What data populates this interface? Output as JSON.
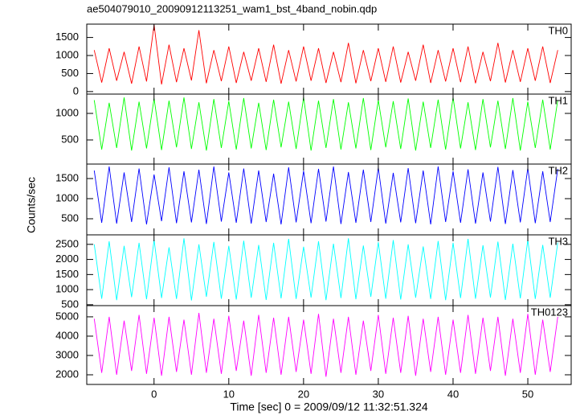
{
  "chart_data": [
    {
      "type": "line",
      "title": "ae504079010_20090912113251_wam1_bst_4band_nobin.qdp",
      "label": "TH0",
      "x": [
        -8,
        -7,
        -6,
        -5,
        -4,
        -3,
        -2,
        -1,
        0,
        1,
        2,
        3,
        4,
        5,
        6,
        7,
        8,
        9,
        10,
        11,
        12,
        13,
        14,
        15,
        16,
        17,
        18,
        19,
        20,
        21,
        22,
        23,
        24,
        25,
        26,
        27,
        28,
        29,
        30,
        31,
        32,
        33,
        34,
        35,
        36,
        37,
        38,
        39,
        40,
        41,
        42,
        43,
        44,
        45,
        46,
        47,
        48,
        49,
        50,
        51,
        52,
        53,
        54
      ],
      "series": [
        {
          "name": "TH0",
          "color": "#ff0000",
          "values": [
            1150,
            250,
            1200,
            300,
            1100,
            220,
            1250,
            280,
            1850,
            200,
            1300,
            260,
            1200,
            310,
            1700,
            230,
            1150,
            290,
            1250,
            240,
            1100,
            300,
            1200,
            270,
            1300,
            220,
            1150,
            280,
            1250,
            300,
            1200,
            240,
            1100,
            260,
            1350,
            230,
            1150,
            290,
            1200,
            270,
            1250,
            250,
            1100,
            300,
            1300,
            240,
            1150,
            280,
            1200,
            260,
            1250,
            230,
            1100,
            290,
            1350,
            250,
            1150,
            270,
            1200,
            300,
            1250,
            240,
            1150
          ]
        }
      ],
      "xlim": [
        -9,
        55.8
      ],
      "xticks": [
        0,
        10,
        20,
        30,
        40,
        50
      ],
      "ylim": [
        -70,
        1870
      ],
      "yticks": [
        0,
        500,
        1000,
        1500
      ]
    },
    {
      "type": "line",
      "label": "TH1",
      "x": [
        -8,
        -7,
        -6,
        -5,
        -4,
        -3,
        -2,
        -1,
        0,
        1,
        2,
        3,
        4,
        5,
        6,
        7,
        8,
        9,
        10,
        11,
        12,
        13,
        14,
        15,
        16,
        17,
        18,
        19,
        20,
        21,
        22,
        23,
        24,
        25,
        26,
        27,
        28,
        29,
        30,
        31,
        32,
        33,
        34,
        35,
        36,
        37,
        38,
        39,
        40,
        41,
        42,
        43,
        44,
        45,
        46,
        47,
        48,
        49,
        50,
        51,
        52,
        53,
        54
      ],
      "series": [
        {
          "name": "TH1",
          "color": "#00ff00",
          "values": [
            1250,
            320,
            1200,
            350,
            1300,
            300,
            1220,
            340,
            1280,
            310,
            1240,
            360,
            1300,
            330,
            1210,
            300,
            1270,
            350,
            1230,
            320,
            1290,
            340,
            1200,
            310,
            1260,
            360,
            1220,
            330,
            1300,
            300,
            1240,
            350,
            1270,
            320,
            1210,
            340,
            1290,
            310,
            1250,
            360,
            1230,
            330,
            1280,
            300,
            1220,
            350,
            1260,
            320,
            1300,
            340,
            1210,
            310,
            1270,
            360,
            1240,
            330,
            1290,
            300,
            1220,
            350,
            1260,
            320,
            1250
          ]
        }
      ],
      "xlim": [
        -9,
        55.8
      ],
      "xticks": [
        0,
        10,
        20,
        30,
        40,
        50
      ],
      "ylim": [
        45,
        1364
      ],
      "yticks": [
        500,
        1000
      ]
    },
    {
      "type": "line",
      "label": "TH2",
      "y_label": "Counts/sec",
      "x": [
        -8,
        -7,
        -6,
        -5,
        -4,
        -3,
        -2,
        -1,
        0,
        1,
        2,
        3,
        4,
        5,
        6,
        7,
        8,
        9,
        10,
        11,
        12,
        13,
        14,
        15,
        16,
        17,
        18,
        19,
        20,
        21,
        22,
        23,
        24,
        25,
        26,
        27,
        28,
        29,
        30,
        31,
        32,
        33,
        34,
        35,
        36,
        37,
        38,
        39,
        40,
        41,
        42,
        43,
        44,
        45,
        46,
        47,
        48,
        49,
        50,
        51,
        52,
        53,
        54
      ],
      "series": [
        {
          "name": "TH2",
          "color": "#0000ff",
          "values": [
            1700,
            400,
            1800,
            380,
            1650,
            420,
            1750,
            360,
            1600,
            440,
            1780,
            390,
            1680,
            410,
            1720,
            370,
            1800,
            430,
            1650,
            400,
            1750,
            380,
            1700,
            420,
            1620,
            360,
            1780,
            410,
            1690,
            390,
            1740,
            430,
            1800,
            370,
            1660,
            400,
            1720,
            420,
            1770,
            380,
            1640,
            410,
            1760,
            390,
            1700,
            360,
            1800,
            420,
            1680,
            400,
            1730,
            380,
            1650,
            430,
            1790,
            370,
            1710,
            410,
            1760,
            390,
            1680,
            420,
            1740
          ]
        }
      ],
      "xlim": [
        -9,
        55.8
      ],
      "xticks": [
        0,
        10,
        20,
        30,
        40,
        50
      ],
      "ylim": [
        100,
        1860
      ],
      "yticks": [
        500,
        1000,
        1500
      ]
    },
    {
      "type": "line",
      "label": "TH3",
      "x": [
        -8,
        -7,
        -6,
        -5,
        -4,
        -3,
        -2,
        -1,
        0,
        1,
        2,
        3,
        4,
        5,
        6,
        7,
        8,
        9,
        10,
        11,
        12,
        13,
        14,
        15,
        16,
        17,
        18,
        19,
        20,
        21,
        22,
        23,
        24,
        25,
        26,
        27,
        28,
        29,
        30,
        31,
        32,
        33,
        34,
        35,
        36,
        37,
        38,
        39,
        40,
        41,
        42,
        43,
        44,
        45,
        46,
        47,
        48,
        49,
        50,
        51,
        52,
        53,
        54
      ],
      "series": [
        {
          "name": "TH3",
          "color": "#00ffff",
          "values": [
            2500,
            700,
            2600,
            650,
            2450,
            750,
            2550,
            680,
            2650,
            720,
            2400,
            690,
            2700,
            640,
            2500,
            760,
            2580,
            700,
            2450,
            670,
            2620,
            730,
            2480,
            660,
            2550,
            710,
            2680,
            690,
            2420,
            740,
            2600,
            650,
            2520,
            720,
            2700,
            680,
            2460,
            760,
            2570,
            700,
            2640,
            670,
            2500,
            730,
            2430,
            690,
            2610,
            650,
            2550,
            720,
            2680,
            700,
            2470,
            740,
            2590,
            660,
            2520,
            710,
            2650,
            690,
            2480,
            730,
            2560
          ]
        }
      ],
      "xlim": [
        -9,
        55.8
      ],
      "xticks": [
        0,
        10,
        20,
        30,
        40,
        50
      ],
      "ylim": [
        470,
        2815
      ],
      "yticks": [
        500,
        1000,
        1500,
        2000,
        2500
      ]
    },
    {
      "type": "line",
      "label": "TH0123",
      "x_label": "Time [sec] 0 = 2009/09/12 11:32:51.324",
      "x": [
        -8,
        -7,
        -6,
        -5,
        -4,
        -3,
        -2,
        -1,
        0,
        1,
        2,
        3,
        4,
        5,
        6,
        7,
        8,
        9,
        10,
        11,
        12,
        13,
        14,
        15,
        16,
        17,
        18,
        19,
        20,
        21,
        22,
        23,
        24,
        25,
        26,
        27,
        28,
        29,
        30,
        31,
        32,
        33,
        34,
        35,
        36,
        37,
        38,
        39,
        40,
        41,
        42,
        43,
        44,
        45,
        46,
        47,
        48,
        49,
        50,
        51,
        52,
        53,
        54
      ],
      "series": [
        {
          "name": "TH0123",
          "color": "#ff00ff",
          "values": [
            4900,
            2100,
            5000,
            2000,
            4800,
            2200,
            5100,
            2050,
            4950,
            1950,
            5000,
            2150,
            4850,
            2000,
            5200,
            2100,
            4900,
            2050,
            5050,
            2200,
            4800,
            1950,
            5100,
            2100,
            4950,
            2000,
            5000,
            2150,
            4850,
            2050,
            5150,
            1900,
            4900,
            2100,
            5000,
            2000,
            4800,
            2200,
            5100,
            2050,
            4950,
            2100,
            5050,
            1950,
            4900,
            2150,
            5000,
            2000,
            4850,
            2100,
            5100,
            2050,
            4950,
            2200,
            5000,
            1950,
            4900,
            2100,
            5150,
            2000,
            4850,
            2150,
            5000
          ]
        }
      ],
      "xlim": [
        -9,
        55.8
      ],
      "xticks": [
        0,
        10,
        20,
        30,
        40,
        50
      ],
      "ylim": [
        1500,
        5580
      ],
      "yticks": [
        2000,
        3000,
        4000,
        5000
      ]
    }
  ]
}
